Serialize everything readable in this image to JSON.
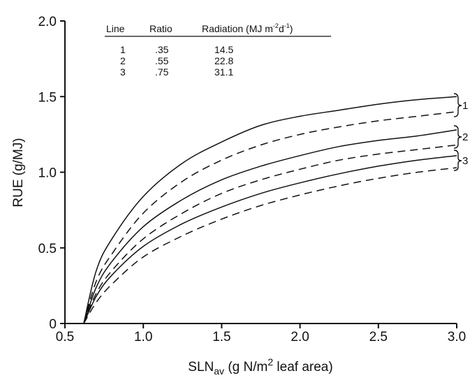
{
  "chart_data": {
    "type": "line",
    "title": "",
    "xlabel": "SLN",
    "xlabel_sub": "av",
    "xlabel_rest": " (g N/m",
    "xlabel_sup": "2",
    "xlabel_end": " leaf area)",
    "ylabel": "RUE (g/MJ)",
    "xlim": [
      0.5,
      3.0
    ],
    "ylim": [
      0,
      2.0
    ],
    "x_ticks": [
      {
        "value": 0.5,
        "label": "0.5"
      },
      {
        "value": 1.0,
        "label": "1.0"
      },
      {
        "value": 1.5,
        "label": "1.5"
      },
      {
        "value": 2.0,
        "label": "2.0"
      },
      {
        "value": 2.5,
        "label": "2.5"
      },
      {
        "value": 3.0,
        "label": "3.0"
      }
    ],
    "y_ticks": [
      {
        "value": 0,
        "label": "0"
      },
      {
        "value": 0.5,
        "label": "0.5"
      },
      {
        "value": 1.0,
        "label": "1.0"
      },
      {
        "value": 1.5,
        "label": "1.5"
      },
      {
        "value": 2.0,
        "label": "2.0"
      }
    ],
    "grid": false,
    "legend_table": {
      "headers": [
        "Line",
        "Ratio",
        "Radiation (MJ m",
        "d"
      ],
      "header_sups": [
        "-2",
        "-1",
        ")"
      ],
      "rows": [
        [
          "1",
          ".35",
          "14.5"
        ],
        [
          "2",
          ".55",
          "22.8"
        ],
        [
          "3",
          ".75",
          "31.1"
        ]
      ]
    },
    "bracket_labels": [
      "1",
      "2",
      "3"
    ],
    "series": [
      {
        "group": "1",
        "style": "solid",
        "x": [
          0.62,
          0.7,
          0.8,
          1.0,
          1.25,
          1.5,
          1.75,
          2.0,
          2.25,
          2.5,
          2.75,
          3.0
        ],
        "y": [
          0.0,
          0.35,
          0.56,
          0.84,
          1.06,
          1.2,
          1.31,
          1.37,
          1.41,
          1.45,
          1.48,
          1.5
        ]
      },
      {
        "group": "1",
        "style": "dashed",
        "x": [
          0.62,
          0.7,
          0.8,
          1.0,
          1.25,
          1.5,
          1.75,
          2.0,
          2.25,
          2.5,
          2.75,
          3.0
        ],
        "y": [
          0.0,
          0.28,
          0.46,
          0.73,
          0.94,
          1.08,
          1.18,
          1.25,
          1.3,
          1.34,
          1.37,
          1.4
        ]
      },
      {
        "group": "2",
        "style": "solid",
        "x": [
          0.62,
          0.7,
          0.8,
          1.0,
          1.25,
          1.5,
          1.75,
          2.0,
          2.25,
          2.5,
          2.75,
          3.0
        ],
        "y": [
          0.0,
          0.24,
          0.41,
          0.64,
          0.82,
          0.95,
          1.04,
          1.11,
          1.17,
          1.21,
          1.24,
          1.28
        ]
      },
      {
        "group": "2",
        "style": "dashed",
        "x": [
          0.62,
          0.7,
          0.8,
          1.0,
          1.25,
          1.5,
          1.75,
          2.0,
          2.25,
          2.5,
          2.75,
          3.0
        ],
        "y": [
          0.0,
          0.2,
          0.35,
          0.56,
          0.73,
          0.86,
          0.95,
          1.02,
          1.08,
          1.12,
          1.15,
          1.18
        ]
      },
      {
        "group": "3",
        "style": "solid",
        "x": [
          0.62,
          0.7,
          0.8,
          1.0,
          1.25,
          1.5,
          1.75,
          2.0,
          2.25,
          2.5,
          2.75,
          3.0
        ],
        "y": [
          0.0,
          0.18,
          0.32,
          0.51,
          0.66,
          0.77,
          0.86,
          0.93,
          0.99,
          1.04,
          1.08,
          1.11
        ]
      },
      {
        "group": "3",
        "style": "dashed",
        "x": [
          0.62,
          0.7,
          0.8,
          1.0,
          1.25,
          1.5,
          1.75,
          2.0,
          2.25,
          2.5,
          2.75,
          3.0
        ],
        "y": [
          0.0,
          0.14,
          0.26,
          0.44,
          0.58,
          0.69,
          0.78,
          0.85,
          0.91,
          0.96,
          1.0,
          1.03
        ]
      }
    ]
  }
}
